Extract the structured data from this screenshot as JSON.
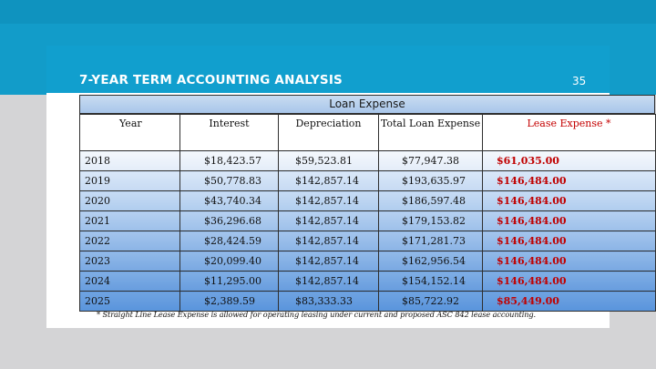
{
  "slide": {
    "title": "7-YEAR TERM ACCOUNTING ANALYSIS",
    "page_number": "35"
  },
  "table": {
    "group_header": "Loan Expense",
    "columns": {
      "year": "Year",
      "interest": "Interest",
      "depreciation": "Depreciation",
      "total_loan_expense": "Total Loan Expense",
      "lease_expense": "Lease Expense *"
    },
    "rows": [
      {
        "year": "2018",
        "interest": "$18,423.57",
        "depreciation": "$59,523.81",
        "total": "$77,947.38",
        "lease": "$61,035.00"
      },
      {
        "year": "2019",
        "interest": "$50,778.83",
        "depreciation": "$142,857.14",
        "total": "$193,635.97",
        "lease": "$146,484.00"
      },
      {
        "year": "2020",
        "interest": "$43,740.34",
        "depreciation": "$142,857.14",
        "total": "$186,597.48",
        "lease": "$146,484.00"
      },
      {
        "year": "2021",
        "interest": "$36,296.68",
        "depreciation": "$142,857.14",
        "total": "$179,153.82",
        "lease": "$146,484.00"
      },
      {
        "year": "2022",
        "interest": "$28,424.59",
        "depreciation": "$142,857.14",
        "total": "$171,281.73",
        "lease": "$146,484.00"
      },
      {
        "year": "2023",
        "interest": "$20,099.40",
        "depreciation": "$142,857.14",
        "total": "$162,956.54",
        "lease": "$146,484.00"
      },
      {
        "year": "2024",
        "interest": "$11,295.00",
        "depreciation": "$142,857.14",
        "total": "$154,152.14",
        "lease": "$146,484.00"
      },
      {
        "year": "2025",
        "interest": "$2,389.59",
        "depreciation": "$83,333.33",
        "total": "$85,722.92",
        "lease": "$85,449.00"
      }
    ]
  },
  "footnote": "* Straight Line Lease Expense is allowed for operating leasing under current and proposed ASC 842 lease accounting.",
  "colors": {
    "header_blue": "#119fce",
    "lease_red": "#c00000"
  }
}
